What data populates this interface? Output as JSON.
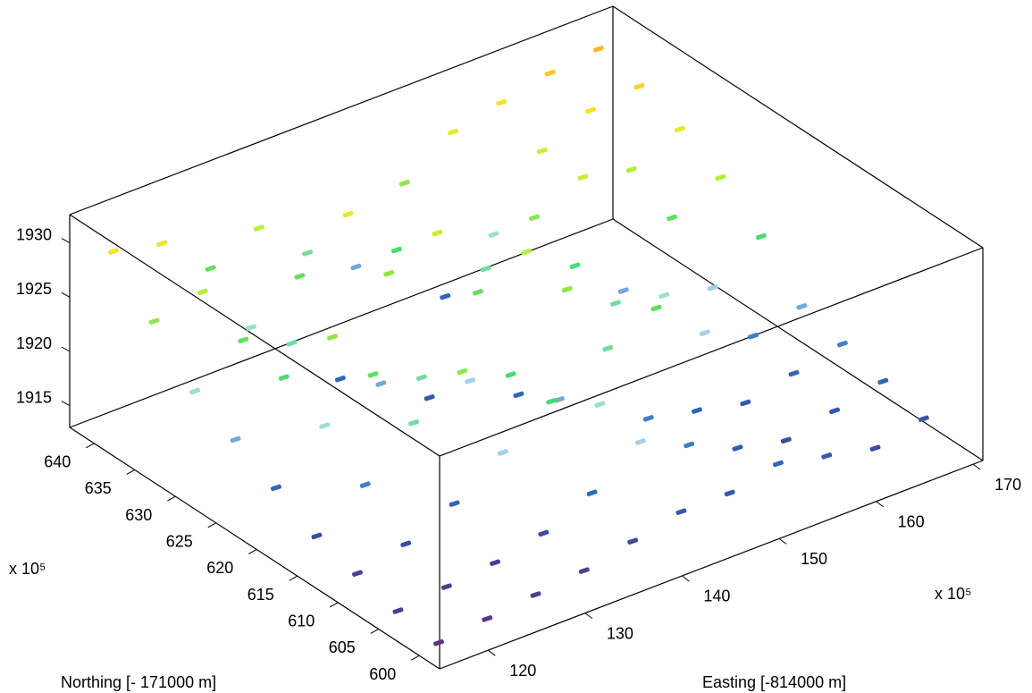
{
  "chart_data": {
    "type": "scatter3d",
    "xlabel": "Easting [-814000 m]",
    "ylabel": "Northing [- 171000 m]",
    "x_multiplier": "x 10⁵",
    "y_multiplier": "x 10⁵",
    "xlim": [
      115,
      171
    ],
    "ylim": [
      597.5,
      643
    ],
    "zlim": [
      1913,
      1932.6
    ],
    "xticks": [
      120,
      130,
      140,
      150,
      160,
      170
    ],
    "yticks": [
      600,
      605,
      610,
      615,
      620,
      625,
      630,
      635,
      640
    ],
    "zticks": [
      1915,
      1920,
      1925,
      1930
    ],
    "colormap": [
      "#6a2c7e",
      "#3b4a9c",
      "#2f6fc0",
      "#b7e0ef",
      "#44d86a",
      "#b5ef3a",
      "#f5e82a",
      "#f59a2a"
    ],
    "x": [
      167,
      162,
      157,
      152,
      147,
      142,
      137,
      132,
      127,
      122,
      117,
      167,
      162,
      157,
      152,
      147,
      142,
      137,
      132,
      127,
      122,
      117,
      167,
      162,
      157,
      152,
      147,
      142,
      137,
      132,
      127,
      122,
      117,
      167,
      162,
      157,
      152,
      147,
      142,
      137,
      132,
      127,
      122,
      117,
      167,
      162,
      157,
      152,
      147,
      142,
      137,
      132,
      127,
      122,
      117,
      167,
      162,
      157,
      152,
      147,
      142,
      137,
      132,
      127,
      122,
      117,
      167,
      162,
      157,
      152,
      147,
      142,
      137,
      132,
      127,
      122,
      117,
      167,
      162,
      157,
      152,
      147,
      142,
      137,
      132,
      127,
      122,
      117,
      167,
      162,
      157,
      152,
      147,
      142,
      137,
      132,
      127,
      122,
      117
    ],
    "y": [
      640,
      640,
      640,
      640,
      640,
      640,
      640,
      640,
      640,
      640,
      640,
      635,
      635,
      635,
      635,
      635,
      635,
      635,
      635,
      635,
      635,
      635,
      630,
      630,
      630,
      630,
      630,
      630,
      630,
      630,
      630,
      630,
      630,
      625,
      625,
      625,
      625,
      625,
      625,
      625,
      625,
      625,
      625,
      625,
      620,
      620,
      620,
      620,
      620,
      620,
      620,
      620,
      620,
      620,
      620,
      615,
      615,
      615,
      615,
      615,
      615,
      615,
      615,
      615,
      615,
      615,
      610,
      610,
      610,
      610,
      610,
      610,
      610,
      610,
      610,
      610,
      610,
      605,
      605,
      605,
      605,
      605,
      605,
      605,
      605,
      605,
      605,
      605,
      600,
      600,
      600,
      600,
      600,
      600,
      600,
      600,
      600,
      600,
      600
    ],
    "z": [
      1931.5,
      1931,
      1930,
      1929,
      1926,
      1920,
      1923,
      1927,
      1925,
      1929,
      1930,
      1930.5,
      1930,
      1928,
      1922,
      1918,
      1924,
      1929,
      1925,
      1922,
      1927,
      1926,
      1929,
      1927,
      1928,
      1926,
      1923,
      1928,
      1926,
      1918,
      1923,
      1925,
      1922,
      1927,
      1925,
      1920,
      1924,
      1927,
      1925,
      1917,
      1920,
      1926,
      1924,
      1920,
      1924,
      1921,
      1922,
      1923,
      1926,
      1918,
      1921,
      1923,
      1925,
      1922,
      1918,
      1920,
      1919,
      1921,
      1925,
      1923,
      1920,
      1924,
      1926,
      1923,
      1919,
      1916,
      1919,
      1918,
      1917,
      1918,
      1919,
      1922,
      1924,
      1921,
      1918,
      1916,
      1915,
      1918,
      1917,
      1916,
      1917,
      1919,
      1921,
      1918,
      1916,
      1915,
      1914.5,
      1914,
      1917,
      1916,
      1917,
      1918,
      1917,
      1917,
      1916,
      1915,
      1914.5,
      1914,
      1913.5
    ]
  }
}
